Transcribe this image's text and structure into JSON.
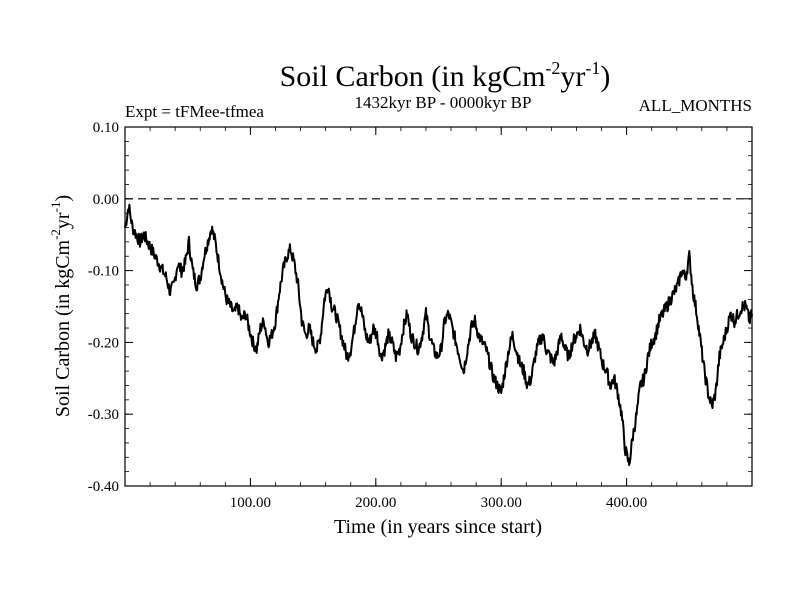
{
  "chart_data": {
    "type": "line",
    "title": "Soil Carbon (in kgCm",
    "title_sup1": "-2",
    "title_mid": "yr",
    "title_sup2": "-1",
    "title_end": ")",
    "subtitle_left": "Expt = tFMee-tfmea",
    "subtitle_center": "1432kyr BP - 0000kyr BP",
    "subtitle_right": "ALL_MONTHS",
    "xlabel": "Time (in years since start)",
    "ylabel_base": "Soil Carbon (in kgCm",
    "ylabel_sup1": "-2",
    "ylabel_mid": "yr",
    "ylabel_sup2": "-1",
    "ylabel_end": ")",
    "xlim": [
      0,
      500
    ],
    "ylim": [
      -0.4,
      0.1
    ],
    "x_ticks": [
      100,
      200,
      300,
      400
    ],
    "x_tick_labels": [
      "100.00",
      "200.00",
      "300.00",
      "400.00"
    ],
    "y_ticks": [
      0.1,
      0.0,
      -0.1,
      -0.2,
      -0.3,
      -0.4
    ],
    "y_tick_labels": [
      "0.10",
      "0.00",
      "-0.10",
      "-0.20",
      "-0.30",
      "-0.40"
    ],
    "reference_line_y": 0.0,
    "series": [
      {
        "name": "Soil Carbon",
        "x": [
          0,
          3,
          6,
          9,
          12,
          15,
          18,
          21,
          24,
          27,
          30,
          33,
          36,
          39,
          42,
          45,
          48,
          51,
          54,
          57,
          60,
          63,
          66,
          69,
          72,
          75,
          78,
          81,
          84,
          87,
          90,
          93,
          96,
          99,
          102,
          105,
          108,
          111,
          114,
          117,
          120,
          123,
          126,
          129,
          132,
          135,
          138,
          141,
          144,
          147,
          150,
          153,
          156,
          159,
          162,
          165,
          168,
          171,
          174,
          177,
          180,
          183,
          186,
          189,
          192,
          195,
          198,
          201,
          204,
          207,
          210,
          213,
          216,
          219,
          222,
          225,
          228,
          231,
          234,
          237,
          240,
          243,
          246,
          249,
          252,
          255,
          258,
          261,
          264,
          267,
          270,
          273,
          276,
          279,
          282,
          285,
          288,
          291,
          294,
          297,
          300,
          303,
          306,
          309,
          312,
          315,
          318,
          321,
          324,
          327,
          330,
          333,
          336,
          339,
          342,
          345,
          348,
          351,
          354,
          357,
          360,
          363,
          366,
          369,
          372,
          375,
          378,
          381,
          384,
          387,
          390,
          393,
          396,
          399,
          402,
          405,
          408,
          411,
          414,
          417,
          420,
          423,
          426,
          429,
          432,
          435,
          438,
          441,
          444,
          447,
          450,
          453,
          456,
          459,
          462,
          465,
          468,
          471,
          474,
          477,
          480,
          483,
          486,
          489,
          492,
          495,
          498,
          500
        ],
        "y": [
          -0.04,
          -0.01,
          -0.04,
          -0.05,
          -0.06,
          -0.05,
          -0.06,
          -0.07,
          -0.08,
          -0.09,
          -0.1,
          -0.11,
          -0.13,
          -0.12,
          -0.09,
          -0.1,
          -0.09,
          -0.06,
          -0.1,
          -0.12,
          -0.11,
          -0.08,
          -0.06,
          -0.04,
          -0.06,
          -0.09,
          -0.12,
          -0.14,
          -0.15,
          -0.16,
          -0.15,
          -0.17,
          -0.16,
          -0.18,
          -0.2,
          -0.21,
          -0.18,
          -0.17,
          -0.2,
          -0.19,
          -0.17,
          -0.13,
          -0.1,
          -0.08,
          -0.07,
          -0.09,
          -0.12,
          -0.17,
          -0.19,
          -0.18,
          -0.2,
          -0.21,
          -0.19,
          -0.14,
          -0.12,
          -0.15,
          -0.16,
          -0.18,
          -0.2,
          -0.22,
          -0.21,
          -0.18,
          -0.14,
          -0.16,
          -0.19,
          -0.2,
          -0.18,
          -0.19,
          -0.22,
          -0.21,
          -0.19,
          -0.2,
          -0.22,
          -0.21,
          -0.18,
          -0.16,
          -0.19,
          -0.2,
          -0.21,
          -0.19,
          -0.16,
          -0.19,
          -0.21,
          -0.22,
          -0.21,
          -0.17,
          -0.16,
          -0.18,
          -0.2,
          -0.22,
          -0.24,
          -0.21,
          -0.18,
          -0.17,
          -0.19,
          -0.2,
          -0.21,
          -0.23,
          -0.25,
          -0.26,
          -0.27,
          -0.24,
          -0.21,
          -0.19,
          -0.21,
          -0.23,
          -0.24,
          -0.26,
          -0.25,
          -0.22,
          -0.2,
          -0.19,
          -0.21,
          -0.22,
          -0.23,
          -0.21,
          -0.19,
          -0.21,
          -0.22,
          -0.2,
          -0.19,
          -0.18,
          -0.2,
          -0.21,
          -0.2,
          -0.19,
          -0.21,
          -0.23,
          -0.24,
          -0.26,
          -0.25,
          -0.27,
          -0.3,
          -0.35,
          -0.37,
          -0.33,
          -0.3,
          -0.26,
          -0.25,
          -0.22,
          -0.2,
          -0.19,
          -0.17,
          -0.16,
          -0.15,
          -0.14,
          -0.13,
          -0.12,
          -0.1,
          -0.11,
          -0.08,
          -0.13,
          -0.16,
          -0.2,
          -0.24,
          -0.27,
          -0.29,
          -0.27,
          -0.22,
          -0.2,
          -0.18,
          -0.16,
          -0.17,
          -0.16,
          -0.15,
          -0.15,
          -0.17,
          -0.16
        ]
      }
    ]
  }
}
